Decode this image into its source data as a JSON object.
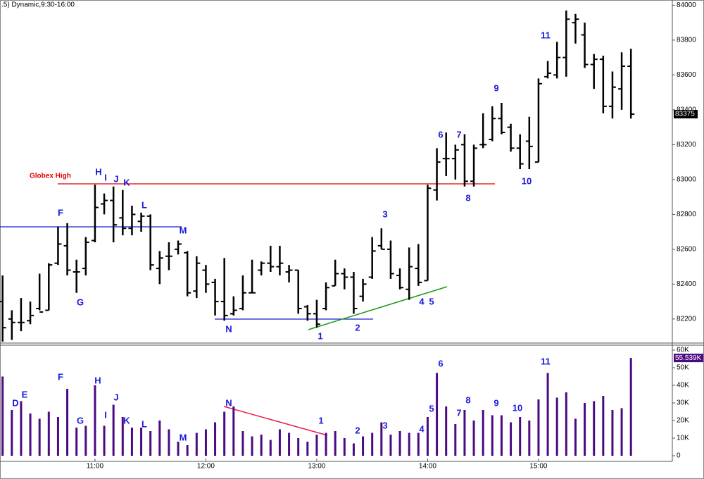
{
  "chart_data": [
    {
      "type": "ohlc",
      "title": ".5) Dynamic,9:30-16:00",
      "color": "#000000",
      "x": [
        610,
        615,
        620,
        625,
        630,
        635,
        640,
        645,
        650,
        655,
        660,
        665,
        670,
        675,
        680,
        685,
        690,
        695,
        700,
        705,
        710,
        715,
        720,
        725,
        730,
        735,
        740,
        745,
        750,
        755,
        760,
        765,
        770,
        775,
        780,
        785,
        790,
        795,
        800,
        805,
        810,
        815,
        820,
        825,
        830,
        835,
        840,
        845,
        850,
        855,
        860,
        865,
        870,
        875,
        880,
        885,
        890,
        895,
        900,
        905,
        910,
        915,
        920,
        925,
        930,
        935,
        940,
        945,
        950
      ],
      "open": [
        82300,
        82200,
        82180,
        82190,
        82260,
        82250,
        82520,
        82620,
        82470,
        82490,
        82650,
        82860,
        82880,
        82780,
        82720,
        82760,
        82790,
        82490,
        82560,
        82600,
        82580,
        82360,
        82480,
        82410,
        82300,
        82230,
        82260,
        82350,
        82480,
        82520,
        82500,
        82470,
        82480,
        82270,
        82230,
        82260,
        82390,
        82460,
        82440,
        82330,
        82440,
        82620,
        82600,
        82450,
        82370,
        82490,
        82420,
        82940,
        83120,
        83120,
        83200,
        82990,
        83200,
        83230,
        83350,
        83300,
        83180,
        83220,
        83100,
        83590,
        83600,
        83700,
        83900,
        83830,
        83660,
        83690,
        83420,
        83520,
        83650
      ],
      "high": [
        82450,
        82250,
        82320,
        82300,
        82460,
        82520,
        82730,
        82750,
        82540,
        82670,
        82970,
        82920,
        82960,
        82940,
        82850,
        82810,
        82800,
        82590,
        82640,
        82650,
        82590,
        82560,
        82510,
        82430,
        82550,
        82330,
        82450,
        82540,
        82530,
        82620,
        82620,
        82510,
        82480,
        82280,
        82310,
        82410,
        82540,
        82490,
        82470,
        82430,
        82670,
        82720,
        82650,
        82490,
        82610,
        82630,
        82970,
        83180,
        83270,
        83200,
        83260,
        83200,
        83380,
        83420,
        83440,
        83320,
        83260,
        83360,
        83580,
        83680,
        83790,
        83970,
        83950,
        83900,
        83720,
        83710,
        83620,
        83730,
        83750
      ],
      "low": [
        82070,
        82080,
        82130,
        82170,
        82250,
        82250,
        82510,
        82450,
        82350,
        82450,
        82640,
        82800,
        82640,
        82680,
        82680,
        82700,
        82480,
        82400,
        82480,
        82570,
        82330,
        82320,
        82350,
        82220,
        82190,
        82220,
        82250,
        82350,
        82450,
        82470,
        82450,
        82410,
        82230,
        82190,
        82150,
        82250,
        82390,
        82370,
        82230,
        82300,
        82430,
        82600,
        82430,
        82370,
        82310,
        82390,
        82420,
        82880,
        83020,
        83000,
        82960,
        82960,
        83180,
        83220,
        83260,
        83160,
        83060,
        83060,
        83100,
        83580,
        83580,
        83590,
        83780,
        83640,
        83520,
        83380,
        83350,
        83400,
        83350
      ],
      "close": [
        82150,
        82180,
        82180,
        82220,
        82240,
        82510,
        82630,
        82480,
        82470,
        82640,
        82840,
        82880,
        82740,
        82720,
        82800,
        82790,
        82510,
        82550,
        82560,
        82630,
        82350,
        82520,
        82400,
        82300,
        82220,
        82250,
        82350,
        82350,
        82520,
        82500,
        82520,
        82480,
        82260,
        82230,
        82170,
        82380,
        82460,
        82440,
        82260,
        82400,
        82590,
        82600,
        82460,
        82380,
        82500,
        82410,
        82950,
        83100,
        83120,
        83170,
        82990,
        83180,
        83200,
        83350,
        83270,
        83180,
        83090,
        83190,
        83550,
        83610,
        83700,
        83920,
        83920,
        83660,
        83690,
        83420,
        83530,
        83650,
        83375
      ],
      "last": 83375,
      "xlim": [
        608.6,
        972.4
      ],
      "ylim": [
        82070,
        84030
      ],
      "yticks": [
        84000,
        83800,
        83600,
        83400,
        83200,
        83000,
        82800,
        82600,
        82400,
        82200
      ],
      "reference_label": "Globex High",
      "annotations": [
        "F",
        "G",
        "H",
        "I",
        "J",
        "K",
        "L",
        "M",
        "N",
        "1",
        "2",
        "3",
        "4",
        "5",
        "6",
        "7",
        "8",
        "9",
        "10",
        "11"
      ]
    },
    {
      "type": "bar",
      "color": "#4b0a82",
      "x": [
        610,
        615,
        620,
        625,
        630,
        635,
        640,
        645,
        650,
        655,
        660,
        665,
        670,
        675,
        680,
        685,
        690,
        695,
        700,
        705,
        710,
        715,
        720,
        725,
        730,
        735,
        740,
        745,
        750,
        755,
        760,
        765,
        770,
        775,
        780,
        785,
        790,
        795,
        800,
        805,
        810,
        815,
        820,
        825,
        830,
        835,
        840,
        845,
        850,
        855,
        860,
        865,
        870,
        875,
        880,
        885,
        890,
        895,
        900,
        905,
        910,
        915,
        920,
        925,
        930,
        935,
        940,
        945,
        950
      ],
      "values": [
        45,
        26,
        31,
        24,
        21,
        25,
        22,
        38,
        16,
        17,
        40,
        17,
        29,
        22,
        16,
        16,
        14,
        20,
        15,
        8,
        6,
        13,
        15,
        19,
        25,
        28,
        14,
        11,
        12,
        9,
        15,
        13,
        10,
        8,
        12,
        13,
        14,
        10,
        7,
        11,
        13,
        19,
        12,
        14,
        13,
        13,
        22,
        47,
        28,
        18,
        26,
        20,
        26,
        23,
        23,
        19,
        22,
        20,
        32,
        47,
        33,
        36,
        21,
        30,
        31,
        34,
        26,
        27,
        55.539
      ],
      "last": {
        "value": 55.539,
        "label": "55.539K"
      },
      "xlim": [
        608.6,
        972.4
      ],
      "ylim": [
        0,
        62.8
      ],
      "xticks": [
        {
          "value": 660,
          "label": "11:00"
        },
        {
          "value": 720,
          "label": "12:00"
        },
        {
          "value": 780,
          "label": "13:00"
        },
        {
          "value": 840,
          "label": "14:00"
        },
        {
          "value": 900,
          "label": "15:00"
        }
      ],
      "yticks": [
        {
          "value": 60,
          "label": "60K"
        },
        {
          "value": 50,
          "label": "50K"
        },
        {
          "value": 40,
          "label": "40K"
        },
        {
          "value": 30,
          "label": "30K"
        },
        {
          "value": 20,
          "label": "20K"
        },
        {
          "value": 10,
          "label": "10K"
        },
        0
      ],
      "annotations": [
        "D",
        "E",
        "F",
        "G",
        "H",
        "I",
        "J",
        "K",
        "L",
        "M",
        "N",
        "1",
        "2",
        "3",
        "4",
        "5",
        "6",
        "7",
        "8",
        "9",
        "10",
        "11"
      ]
    }
  ]
}
